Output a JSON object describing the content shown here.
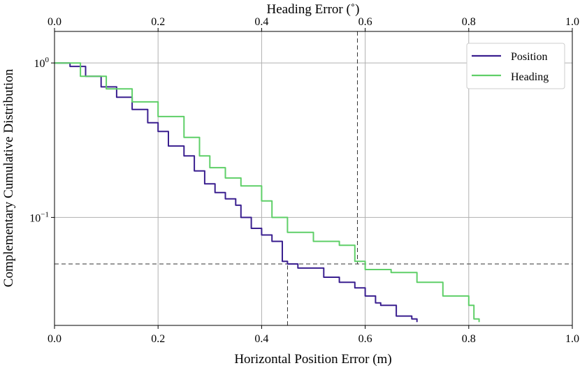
{
  "chart_data": {
    "type": "line",
    "x_scale": "linear",
    "y_scale": "log",
    "xlabel": "Horizontal Position Error (m)",
    "x2label": "Heading Error (˚)",
    "ylabel": "Complementary Cumulative Distribution",
    "xlim": [
      0.0,
      1.0
    ],
    "x2lim": [
      0.0,
      1.0
    ],
    "ylim": [
      0.02,
      1.6
    ],
    "xticks": [
      0.0,
      0.2,
      0.4,
      0.6,
      0.8,
      1.0
    ],
    "xtick_labels": [
      "0.0",
      "0.2",
      "0.4",
      "0.6",
      "0.8",
      "1.0"
    ],
    "x2tick_labels": [
      "0.0",
      "0.2",
      "0.4",
      "0.6",
      "0.8",
      "1.0"
    ],
    "yticks": [
      1.0,
      0.1
    ],
    "ytick_labels": [
      {
        "base": "10",
        "exp": "0"
      },
      {
        "base": "10",
        "exp": "−1"
      }
    ],
    "grid": true,
    "legend_position": "top-right",
    "series": [
      {
        "name": "Position",
        "color": "#3a1f8f",
        "axis": "bottom",
        "x": [
          0.0,
          0.03,
          0.06,
          0.09,
          0.12,
          0.15,
          0.18,
          0.2,
          0.22,
          0.25,
          0.27,
          0.29,
          0.31,
          0.33,
          0.35,
          0.36,
          0.38,
          0.4,
          0.42,
          0.44,
          0.45,
          0.47,
          0.52,
          0.55,
          0.58,
          0.6,
          0.62,
          0.63,
          0.66,
          0.69,
          0.7
        ],
        "y": [
          1.0,
          0.95,
          0.82,
          0.7,
          0.6,
          0.5,
          0.41,
          0.36,
          0.29,
          0.25,
          0.2,
          0.165,
          0.145,
          0.132,
          0.12,
          0.1,
          0.085,
          0.077,
          0.07,
          0.052,
          0.05,
          0.047,
          0.041,
          0.038,
          0.035,
          0.031,
          0.028,
          0.027,
          0.023,
          0.022,
          0.021
        ]
      },
      {
        "name": "Heading",
        "color": "#5fcf68",
        "axis": "top",
        "x": [
          0.0,
          0.05,
          0.1,
          0.15,
          0.2,
          0.25,
          0.28,
          0.3,
          0.33,
          0.36,
          0.4,
          0.42,
          0.45,
          0.5,
          0.55,
          0.58,
          0.6,
          0.65,
          0.7,
          0.75,
          0.8,
          0.81,
          0.82
        ],
        "y": [
          1.0,
          0.82,
          0.68,
          0.56,
          0.45,
          0.33,
          0.25,
          0.21,
          0.18,
          0.16,
          0.128,
          0.1,
          0.08,
          0.07,
          0.066,
          0.052,
          0.046,
          0.044,
          0.038,
          0.031,
          0.027,
          0.022,
          0.021
        ]
      }
    ],
    "reference_lines": [
      {
        "orientation": "horizontal",
        "axis": "y",
        "value": 0.05,
        "style": "dashed"
      },
      {
        "orientation": "vertical",
        "axis": "bottom",
        "value": 0.45,
        "style": "dashed",
        "to_y": 0.05
      },
      {
        "orientation": "vertical",
        "axis": "top",
        "value": 0.585,
        "style": "dashed",
        "from_y": 0.05
      }
    ]
  }
}
